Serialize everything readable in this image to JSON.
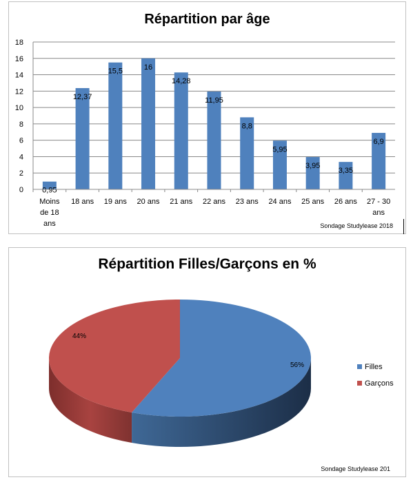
{
  "charts": [
    {
      "type": "bar",
      "title": "Répartition par âge",
      "categories": [
        [
          "Moins",
          "de 18",
          "ans"
        ],
        [
          "18 ans"
        ],
        [
          "19 ans"
        ],
        [
          "20 ans"
        ],
        [
          "21 ans"
        ],
        [
          "22 ans"
        ],
        [
          "23 ans"
        ],
        [
          "24 ans"
        ],
        [
          "25 ans"
        ],
        [
          "26 ans"
        ],
        [
          "27 - 30",
          "ans"
        ]
      ],
      "values": [
        0.95,
        12.37,
        15.5,
        16,
        14.28,
        11.95,
        8.8,
        5.95,
        3.95,
        3.35,
        6.9
      ],
      "value_labels": [
        "0,95",
        "12,37",
        "15,5",
        "16",
        "14,28",
        "11,95",
        "8,8",
        "5,95",
        "3,95",
        "3,35",
        "6,9"
      ],
      "ylim": [
        0,
        18
      ],
      "yticks": [
        "0",
        "2",
        "4",
        "6",
        "8",
        "10",
        "12",
        "14",
        "16",
        "18"
      ],
      "grid": true,
      "bar_color": "#4f81bd",
      "source": "Sondage Studylease 2018"
    },
    {
      "type": "pie",
      "title": "Répartition Filles/Garçons en %",
      "labels": [
        "Filles",
        "Garçons"
      ],
      "values": [
        56,
        44
      ],
      "value_labels": [
        "56%",
        "44%"
      ],
      "colors": [
        "#4f81bd",
        "#c0504d"
      ],
      "legend": "right",
      "source": "Sondage Studylease 201"
    }
  ]
}
